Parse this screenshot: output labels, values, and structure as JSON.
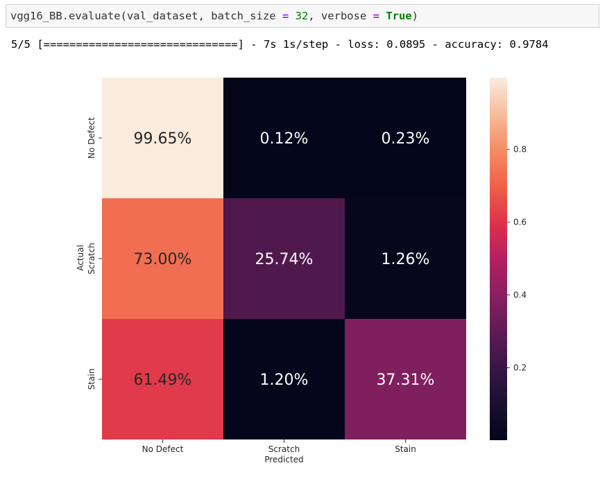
{
  "code_cell": {
    "fn": "vgg16_BB.evaluate(val_dataset, batch_size ",
    "eq1": "=",
    "mid1": " ",
    "num": "32",
    "mid2": ", verbose ",
    "eq2": "=",
    "mid3": " ",
    "kw": "True",
    "end": ")"
  },
  "output": {
    "text": "5/5 [==============================] - 7s 1s/step - loss: 0.0895 - accuracy: 0.9784"
  },
  "chart_data": {
    "type": "heatmap",
    "title": "",
    "xlabel": "Predicted",
    "ylabel": "Actual",
    "x_categories": [
      "No Defect",
      "Scratch",
      "Stain"
    ],
    "y_categories": [
      "No Defect",
      "Scratch",
      "Stain"
    ],
    "values": [
      [
        0.9965,
        0.0012,
        0.0023
      ],
      [
        0.73,
        0.2574,
        0.0126
      ],
      [
        0.6149,
        0.012,
        0.3731
      ]
    ],
    "annotations": [
      [
        "99.65%",
        "0.12%",
        "0.23%"
      ],
      [
        "73.00%",
        "25.74%",
        "1.26%"
      ],
      [
        "61.49%",
        "1.20%",
        "37.31%"
      ]
    ],
    "colormap": "rocket",
    "colorbar": {
      "vmin": 0.0012,
      "vmax": 0.9965,
      "ticks": [
        0.2,
        0.4,
        0.6,
        0.8
      ],
      "tick_labels": [
        "0.2",
        "0.4",
        "0.6",
        "0.8"
      ]
    }
  }
}
